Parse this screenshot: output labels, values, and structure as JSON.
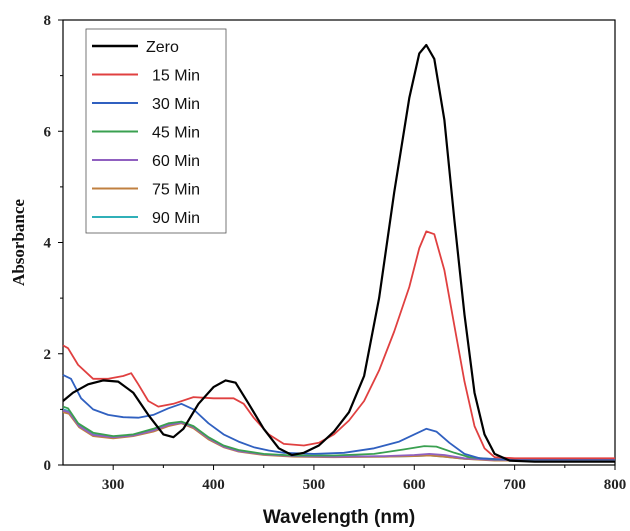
{
  "chart_data": {
    "type": "line",
    "xlabel": "Wavelength (nm)",
    "ylabel": "Absorbance",
    "xlim": [
      250,
      800
    ],
    "ylim": [
      0,
      8
    ],
    "xticks": [
      300,
      400,
      500,
      600,
      700,
      800
    ],
    "yticks": [
      0,
      2,
      4,
      6,
      8
    ],
    "grid": false,
    "legend_position": "top-left",
    "series": [
      {
        "name": "Zero",
        "color": "#000000",
        "points": [
          [
            250,
            1.15
          ],
          [
            260,
            1.3
          ],
          [
            275,
            1.45
          ],
          [
            290,
            1.52
          ],
          [
            305,
            1.5
          ],
          [
            320,
            1.3
          ],
          [
            335,
            0.9
          ],
          [
            350,
            0.55
          ],
          [
            360,
            0.5
          ],
          [
            370,
            0.65
          ],
          [
            385,
            1.1
          ],
          [
            400,
            1.4
          ],
          [
            412,
            1.52
          ],
          [
            422,
            1.48
          ],
          [
            435,
            1.1
          ],
          [
            450,
            0.65
          ],
          [
            465,
            0.3
          ],
          [
            478,
            0.18
          ],
          [
            490,
            0.22
          ],
          [
            505,
            0.35
          ],
          [
            520,
            0.6
          ],
          [
            535,
            0.95
          ],
          [
            550,
            1.6
          ],
          [
            565,
            3.0
          ],
          [
            580,
            4.9
          ],
          [
            595,
            6.6
          ],
          [
            605,
            7.4
          ],
          [
            612,
            7.55
          ],
          [
            620,
            7.3
          ],
          [
            630,
            6.2
          ],
          [
            640,
            4.4
          ],
          [
            650,
            2.7
          ],
          [
            660,
            1.3
          ],
          [
            670,
            0.55
          ],
          [
            680,
            0.2
          ],
          [
            695,
            0.08
          ],
          [
            720,
            0.06
          ],
          [
            800,
            0.06
          ]
        ]
      },
      {
        "name": "15 Min",
        "color": "#e04040",
        "points": [
          [
            250,
            2.15
          ],
          [
            255,
            2.1
          ],
          [
            265,
            1.8
          ],
          [
            280,
            1.55
          ],
          [
            295,
            1.55
          ],
          [
            310,
            1.6
          ],
          [
            318,
            1.65
          ],
          [
            325,
            1.45
          ],
          [
            335,
            1.15
          ],
          [
            345,
            1.05
          ],
          [
            360,
            1.1
          ],
          [
            380,
            1.22
          ],
          [
            400,
            1.2
          ],
          [
            420,
            1.2
          ],
          [
            430,
            1.1
          ],
          [
            440,
            0.85
          ],
          [
            455,
            0.55
          ],
          [
            470,
            0.38
          ],
          [
            490,
            0.35
          ],
          [
            505,
            0.4
          ],
          [
            520,
            0.55
          ],
          [
            535,
            0.8
          ],
          [
            550,
            1.15
          ],
          [
            565,
            1.7
          ],
          [
            580,
            2.4
          ],
          [
            595,
            3.2
          ],
          [
            605,
            3.9
          ],
          [
            612,
            4.2
          ],
          [
            620,
            4.15
          ],
          [
            630,
            3.5
          ],
          [
            640,
            2.5
          ],
          [
            650,
            1.5
          ],
          [
            660,
            0.7
          ],
          [
            670,
            0.3
          ],
          [
            680,
            0.14
          ],
          [
            700,
            0.12
          ],
          [
            800,
            0.12
          ]
        ]
      },
      {
        "name": "30 Min",
        "color": "#3060c0",
        "points": [
          [
            250,
            1.62
          ],
          [
            258,
            1.55
          ],
          [
            268,
            1.2
          ],
          [
            280,
            1.0
          ],
          [
            295,
            0.9
          ],
          [
            310,
            0.86
          ],
          [
            325,
            0.85
          ],
          [
            340,
            0.9
          ],
          [
            355,
            1.02
          ],
          [
            368,
            1.1
          ],
          [
            380,
            1.0
          ],
          [
            395,
            0.75
          ],
          [
            410,
            0.55
          ],
          [
            425,
            0.42
          ],
          [
            440,
            0.32
          ],
          [
            455,
            0.26
          ],
          [
            470,
            0.22
          ],
          [
            500,
            0.2
          ],
          [
            530,
            0.22
          ],
          [
            560,
            0.3
          ],
          [
            585,
            0.42
          ],
          [
            600,
            0.55
          ],
          [
            612,
            0.65
          ],
          [
            622,
            0.6
          ],
          [
            635,
            0.4
          ],
          [
            650,
            0.2
          ],
          [
            665,
            0.12
          ],
          [
            690,
            0.1
          ],
          [
            800,
            0.1
          ]
        ]
      },
      {
        "name": "45 Min",
        "color": "#3aa050",
        "points": [
          [
            250,
            1.05
          ],
          [
            255,
            1.02
          ],
          [
            265,
            0.75
          ],
          [
            280,
            0.58
          ],
          [
            300,
            0.52
          ],
          [
            320,
            0.55
          ],
          [
            340,
            0.65
          ],
          [
            355,
            0.75
          ],
          [
            368,
            0.78
          ],
          [
            380,
            0.7
          ],
          [
            395,
            0.5
          ],
          [
            410,
            0.35
          ],
          [
            425,
            0.27
          ],
          [
            450,
            0.2
          ],
          [
            480,
            0.17
          ],
          [
            520,
            0.17
          ],
          [
            560,
            0.2
          ],
          [
            590,
            0.28
          ],
          [
            610,
            0.34
          ],
          [
            622,
            0.33
          ],
          [
            640,
            0.22
          ],
          [
            655,
            0.14
          ],
          [
            680,
            0.1
          ],
          [
            800,
            0.1
          ]
        ]
      },
      {
        "name": "60 Min",
        "color": "#9060c0",
        "points": [
          [
            250,
            0.98
          ],
          [
            256,
            0.95
          ],
          [
            266,
            0.7
          ],
          [
            280,
            0.54
          ],
          [
            300,
            0.5
          ],
          [
            320,
            0.53
          ],
          [
            340,
            0.62
          ],
          [
            355,
            0.72
          ],
          [
            368,
            0.76
          ],
          [
            380,
            0.68
          ],
          [
            395,
            0.48
          ],
          [
            410,
            0.33
          ],
          [
            425,
            0.25
          ],
          [
            450,
            0.19
          ],
          [
            480,
            0.16
          ],
          [
            520,
            0.15
          ],
          [
            570,
            0.16
          ],
          [
            600,
            0.18
          ],
          [
            615,
            0.2
          ],
          [
            630,
            0.18
          ],
          [
            650,
            0.12
          ],
          [
            680,
            0.09
          ],
          [
            800,
            0.09
          ]
        ]
      },
      {
        "name": "75 Min",
        "color": "#c08040",
        "points": [
          [
            250,
            0.95
          ],
          [
            256,
            0.92
          ],
          [
            266,
            0.68
          ],
          [
            280,
            0.52
          ],
          [
            300,
            0.48
          ],
          [
            320,
            0.52
          ],
          [
            340,
            0.6
          ],
          [
            355,
            0.7
          ],
          [
            368,
            0.75
          ],
          [
            380,
            0.66
          ],
          [
            395,
            0.46
          ],
          [
            410,
            0.32
          ],
          [
            425,
            0.24
          ],
          [
            450,
            0.18
          ],
          [
            480,
            0.15
          ],
          [
            520,
            0.14
          ],
          [
            570,
            0.15
          ],
          [
            600,
            0.16
          ],
          [
            615,
            0.17
          ],
          [
            630,
            0.15
          ],
          [
            650,
            0.11
          ],
          [
            680,
            0.08
          ],
          [
            800,
            0.08
          ]
        ]
      },
      {
        "name": "90 Min",
        "color": "#30b0b8",
        "points": [
          [
            250,
            1.0
          ],
          [
            256,
            0.97
          ],
          [
            266,
            0.72
          ],
          [
            280,
            0.55
          ],
          [
            300,
            0.5
          ],
          [
            320,
            0.53
          ],
          [
            340,
            0.62
          ],
          [
            355,
            0.72
          ],
          [
            368,
            0.76
          ],
          [
            380,
            0.68
          ],
          [
            395,
            0.48
          ],
          [
            410,
            0.33
          ],
          [
            425,
            0.25
          ],
          [
            450,
            0.19
          ],
          [
            480,
            0.16
          ],
          [
            520,
            0.15
          ],
          [
            570,
            0.15
          ],
          [
            600,
            0.16
          ],
          [
            615,
            0.17
          ],
          [
            630,
            0.15
          ],
          [
            650,
            0.11
          ],
          [
            680,
            0.09
          ],
          [
            800,
            0.09
          ]
        ]
      }
    ]
  }
}
